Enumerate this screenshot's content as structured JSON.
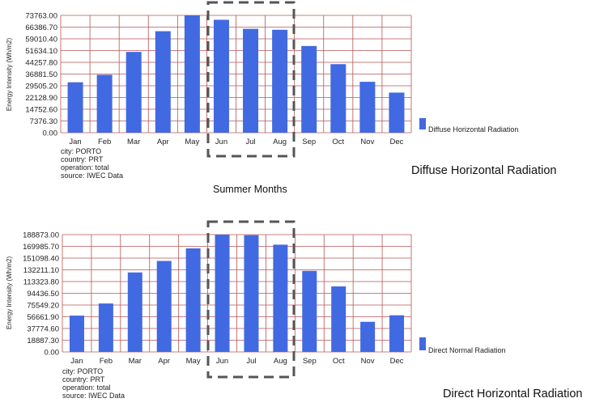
{
  "chart_data": [
    {
      "type": "bar",
      "categories": [
        "Jan",
        "Feb",
        "Mar",
        "Apr",
        "May",
        "Jun",
        "Jul",
        "Aug",
        "Sep",
        "Oct",
        "Nov",
        "Dec"
      ],
      "series": [
        {
          "name": "Diffuse Horizontal Radiation",
          "values": [
            31700,
            36400,
            50800,
            63800,
            73763,
            71000,
            65300,
            64700,
            54500,
            43100,
            32000,
            25200
          ]
        }
      ],
      "ylabel": "Energy Intensity (Wh/m2)",
      "yticks": [
        "0.00",
        "7376.30",
        "14752.60",
        "22128.90",
        "29505.20",
        "36881.50",
        "44257.80",
        "51634.10",
        "59010.40",
        "66386.70",
        "73763.00"
      ],
      "ylim": [
        0,
        73763
      ],
      "bar_color": "#4169e1",
      "grid": true,
      "legend": "right",
      "info": [
        "city: PORTO",
        "country: PRT",
        "operation: total",
        "source: IWEC Data"
      ],
      "caption": "Diffuse Horizontal Radiation",
      "highlight_label": "Summer Months"
    },
    {
      "type": "bar",
      "categories": [
        "Jan",
        "Feb",
        "Mar",
        "Apr",
        "May",
        "Jun",
        "Jul",
        "Aug",
        "Sep",
        "Oct",
        "Nov",
        "Dec"
      ],
      "series": [
        {
          "name": "Direct Normal Radiation",
          "values": [
            58500,
            78000,
            128000,
            146500,
            166700,
            188873,
            188000,
            172700,
            130500,
            105500,
            48500,
            59000
          ]
        }
      ],
      "ylabel": "Energy Intensity (Wh/m2)",
      "yticks": [
        "0.00",
        "18887.30",
        "37774.60",
        "56661.90",
        "75549.20",
        "94436.50",
        "113323.80",
        "132211.10",
        "151098.40",
        "169985.70",
        "188873.00"
      ],
      "ylim": [
        0,
        188873
      ],
      "bar_color": "#4169e1",
      "grid": true,
      "legend": "right",
      "info": [
        "city: PORTO",
        "country: PRT",
        "operation: total",
        "source: IWEC Data"
      ],
      "caption": "Direct Horizontal Radiation"
    }
  ]
}
